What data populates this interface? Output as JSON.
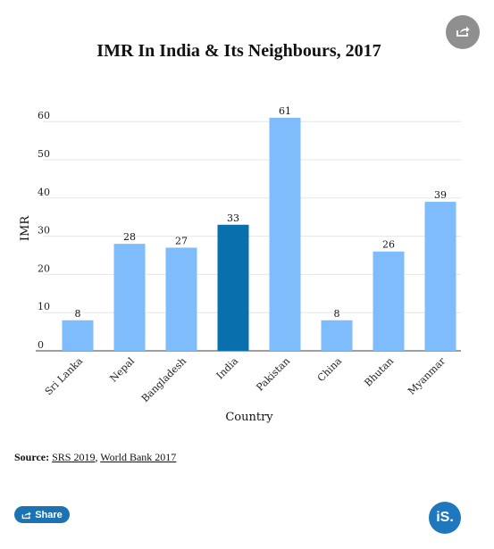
{
  "share_fab_icon": "share-icon",
  "chart_data": {
    "type": "bar",
    "title": "IMR In India & Its Neighbours, 2017",
    "xlabel": "Country",
    "ylabel": "IMR",
    "ylim": [
      0,
      65
    ],
    "yticks": [
      0,
      10,
      20,
      30,
      40,
      50,
      60
    ],
    "grid": true,
    "categories": [
      "Sri Lanka",
      "Nepal",
      "Bangladesh",
      "India",
      "Pakistan",
      "China",
      "Bhutan",
      "Myanmar"
    ],
    "values": [
      8,
      28,
      27,
      33,
      61,
      8,
      26,
      39
    ],
    "highlight": "India",
    "colors": {
      "default": "#7fbcfb",
      "highlight": "#0a6fad"
    }
  },
  "source": {
    "label": "Source:",
    "links": [
      "SRS 2019",
      "World Bank 2017"
    ],
    "separator": ","
  },
  "share_button": {
    "label": "Share",
    "icon": "share-icon"
  },
  "logo": {
    "text": "iS."
  }
}
